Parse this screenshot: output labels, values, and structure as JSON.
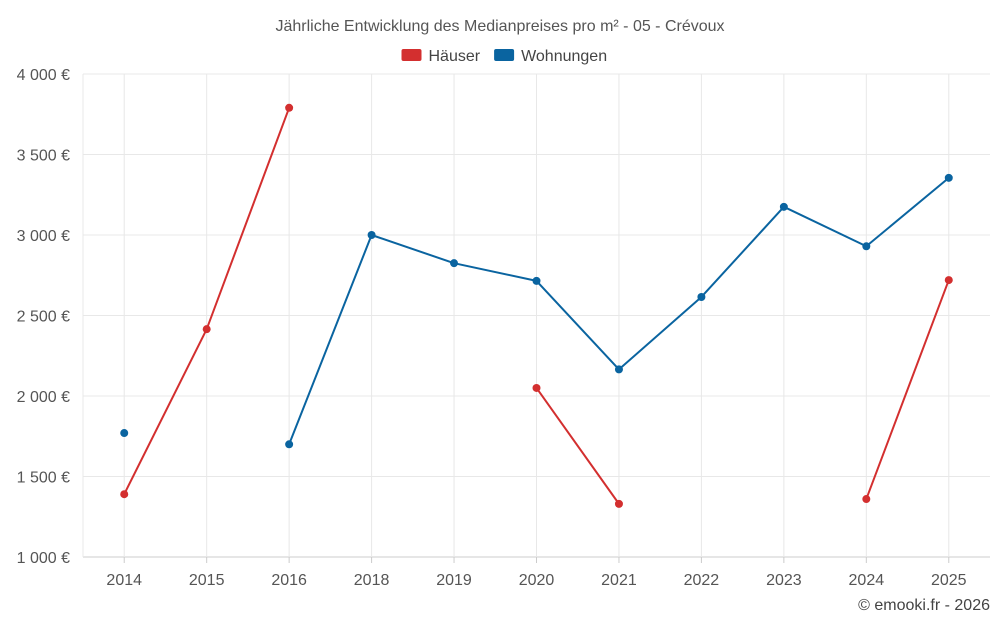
{
  "chart_data": {
    "type": "line",
    "title": "Jährliche Entwicklung des Medianpreises pro m² - 05 - Crévoux",
    "categories": [
      "2014",
      "2015",
      "2016",
      "2018",
      "2019",
      "2020",
      "2021",
      "2022",
      "2023",
      "2024",
      "2025"
    ],
    "series": [
      {
        "name": "Häuser",
        "color": "#d32f2f",
        "values": [
          1390,
          2415,
          3790,
          null,
          null,
          2050,
          1330,
          null,
          null,
          1360,
          2720
        ]
      },
      {
        "name": "Wohnungen",
        "color": "#0a64a0",
        "values": [
          1770,
          null,
          1700,
          3000,
          2825,
          2715,
          2165,
          2615,
          3175,
          2930,
          3355
        ]
      }
    ],
    "y_ticks": [
      1000,
      1500,
      2000,
      2500,
      3000,
      3500,
      4000
    ],
    "y_tick_labels": [
      "1 000 €",
      "1 500 €",
      "2 000 €",
      "2 500 €",
      "3 000 €",
      "3 500 €",
      "4 000 €"
    ],
    "ylim": [
      1000,
      4000
    ],
    "grid": true,
    "legend_position": "top-center",
    "credit": "© emooki.fr - 2026"
  }
}
